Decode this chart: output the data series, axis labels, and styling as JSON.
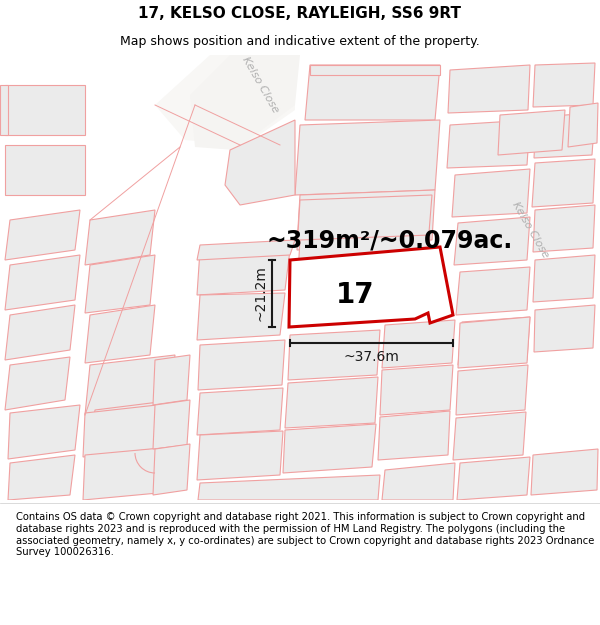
{
  "title": "17, KELSO CLOSE, RAYLEIGH, SS6 9RT",
  "subtitle": "Map shows position and indicative extent of the property.",
  "area_text": "~319m²/~0.079ac.",
  "plot_number": "17",
  "width_label": "~37.6m",
  "height_label": "~21.2m",
  "footer_text": "Contains OS data © Crown copyright and database right 2021. This information is subject to Crown copyright and database rights 2023 and is reproduced with the permission of HM Land Registry. The polygons (including the associated geometry, namely x, y co-ordinates) are subject to Crown copyright and database rights 2023 Ordnance Survey 100026316.",
  "map_bg": "#f5f4f2",
  "bldg_fill": "#ebebeb",
  "bldg_edge": "#f0a0a0",
  "road_fill": "#f9f8f6",
  "dark_gray_edge": "#c8c8c8",
  "plot_edge": "#cc0000",
  "dim_color": "#1a1a1a",
  "kelso_color": "#b0b0b0",
  "title_fontsize": 11,
  "subtitle_fontsize": 9,
  "area_fontsize": 17,
  "plot_num_fontsize": 20,
  "dim_fontsize": 10,
  "footer_fontsize": 7.2,
  "kelso_fontsize": 8
}
